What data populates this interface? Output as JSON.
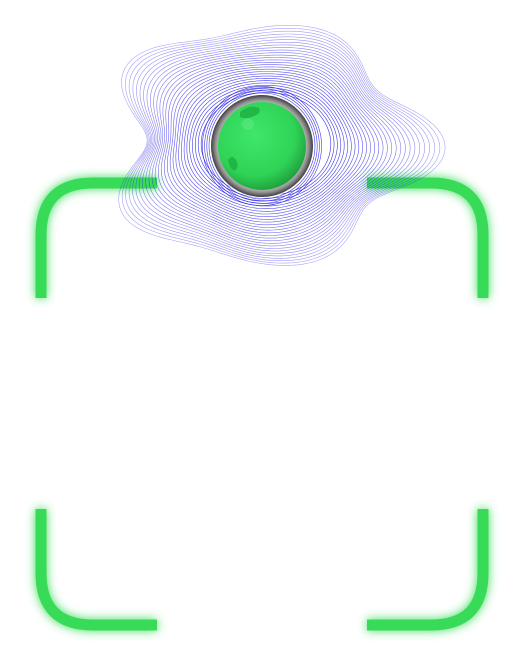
{
  "colors": {
    "background": "#ffffff",
    "frame_accent": "#37db59",
    "frame_glow": "#7dff98",
    "wave_lines": "#2b22e6",
    "orb_fill": "#34de5a",
    "orb_ring": "#7a7a7a"
  },
  "icons": {
    "scanner_orb": "green-globe-icon",
    "wave_halo": "concentric-wave-rings-icon"
  }
}
